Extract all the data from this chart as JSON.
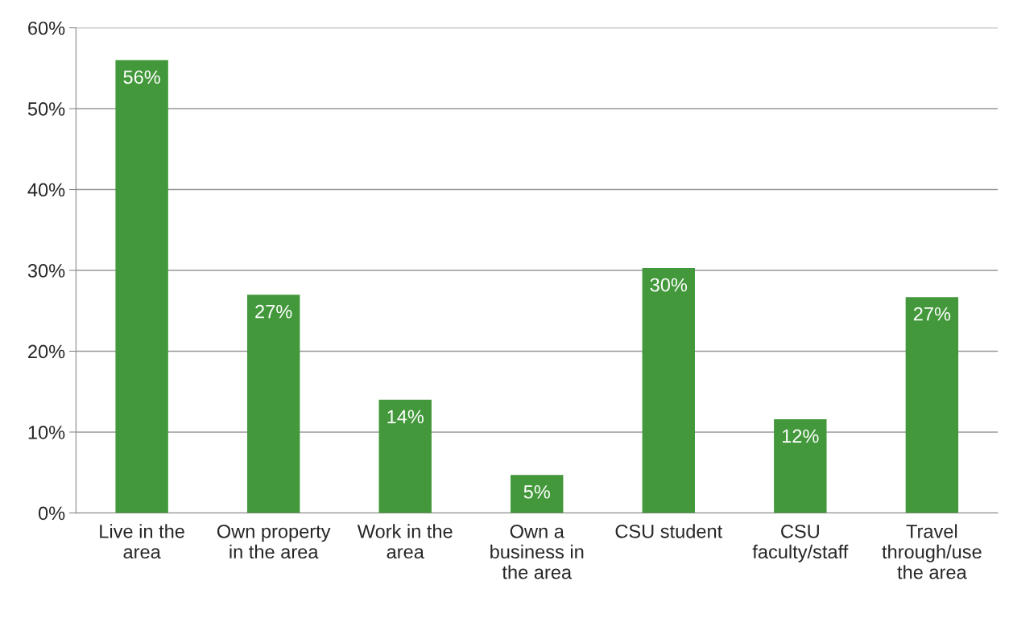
{
  "chart_data": {
    "type": "bar",
    "categories": [
      "Live in the\narea",
      "Own property\nin the area",
      "Work in the\narea",
      "Own a\nbusiness in\nthe area",
      "CSU student",
      "CSU\nfaculty/staff",
      "Travel\nthrough/use\nthe area"
    ],
    "values": [
      56,
      27,
      14,
      4.7,
      30.3,
      11.6,
      26.7
    ],
    "value_labels": [
      "56%",
      "27%",
      "14%",
      "5%",
      "30%",
      "12%",
      "27%"
    ],
    "color": "#43983b",
    "ylim": [
      0,
      60
    ],
    "yticks": [
      {
        "value": 0,
        "label": "0%"
      },
      {
        "value": 10,
        "label": "10%"
      },
      {
        "value": 20,
        "label": "20%"
      },
      {
        "value": 30,
        "label": "30%"
      },
      {
        "value": 40,
        "label": "40%"
      },
      {
        "value": 50,
        "label": "50%"
      },
      {
        "value": 60,
        "label": "60%"
      }
    ],
    "grid": "y",
    "legend": false
  }
}
